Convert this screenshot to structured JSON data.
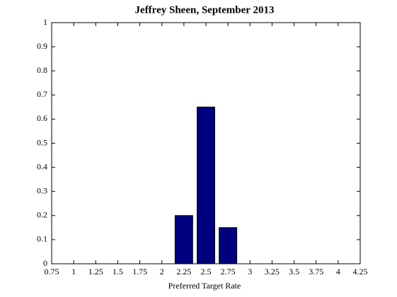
{
  "chart_data": {
    "type": "bar",
    "title": "Jeffrey Sheen, September 2013",
    "x_label": "Preferred Target Rate",
    "x": [
      2.25,
      2.5,
      2.75
    ],
    "values": [
      0.2,
      0.65,
      0.15
    ],
    "color": "#000080",
    "xlim": [
      0.75,
      4.25
    ],
    "xticks": [
      0.75,
      1,
      1.25,
      1.5,
      1.75,
      2,
      2.25,
      2.5,
      2.75,
      3,
      3.25,
      3.5,
      3.75,
      4,
      4.25
    ],
    "ylim": [
      0,
      1
    ],
    "yticks": [
      0,
      0.1,
      0.2,
      0.3,
      0.4,
      0.5,
      0.6,
      0.7,
      0.8,
      0.9,
      1
    ],
    "grid": false
  }
}
